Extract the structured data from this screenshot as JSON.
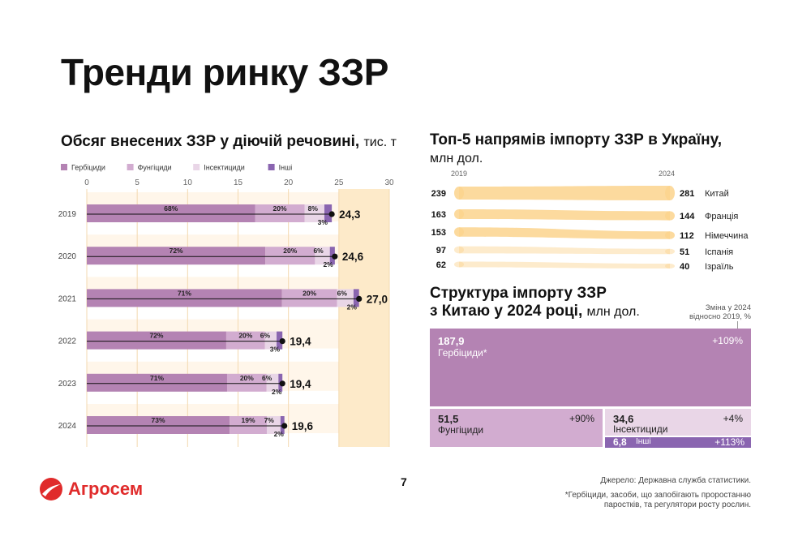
{
  "page": {
    "title": "Тренди ринку ЗЗР",
    "page_number": "7",
    "brand": "Агросем",
    "source": "Джерело: Державна служба статистики.",
    "footnote_line1": "*Гербіциди, засоби, що запобігають проростанню",
    "footnote_line2": "паростків, та регулятори росту рослин."
  },
  "colors": {
    "herbicides": "#b483b3",
    "fungicides": "#d2acd0",
    "insecticides": "#e9d6e7",
    "others": "#8a65b0",
    "band": "#fdeac9",
    "flow": "#fbd38d",
    "brand_red": "#e02b2b"
  },
  "chart_data": [
    {
      "type": "bar",
      "subtype": "stacked-horizontal",
      "title": "Обсяг внесених ЗЗР у діючій речовині,",
      "unit": "тис. т",
      "legend": [
        "Гербіциди",
        "Фунгіциди",
        "Інсектициди",
        "Інші"
      ],
      "xlim": [
        0,
        30
      ],
      "xticks": [
        0,
        5,
        10,
        15,
        20,
        25,
        30
      ],
      "categories": [
        "2019",
        "2020",
        "2021",
        "2022",
        "2023",
        "2024"
      ],
      "totals": [
        24.3,
        24.6,
        27.0,
        19.4,
        19.4,
        19.6
      ],
      "total_labels": [
        "24,3",
        "24,6",
        "27,0",
        "19,4",
        "19,4",
        "19,6"
      ],
      "series": [
        {
          "name": "Гербіциди",
          "shares": [
            68,
            72,
            71,
            72,
            71,
            73
          ],
          "labels": [
            "68%",
            "72%",
            "71%",
            "72%",
            "71%",
            "73%"
          ]
        },
        {
          "name": "Фунгіциди",
          "shares": [
            20,
            20,
            20,
            20,
            20,
            19
          ],
          "labels": [
            "20%",
            "20%",
            "20%",
            "20%",
            "20%",
            "19%"
          ]
        },
        {
          "name": "Інсектициди",
          "shares": [
            8,
            6,
            6,
            6,
            6,
            7
          ],
          "labels": [
            "8%",
            "6%",
            "6%",
            "6%",
            "6%",
            "7%"
          ]
        },
        {
          "name": "Інші",
          "shares": [
            3,
            2,
            2,
            3,
            2,
            2
          ],
          "labels": [
            "3%",
            "2%",
            "2%",
            "3%",
            "2%",
            "2%"
          ]
        }
      ]
    },
    {
      "type": "slope",
      "title": "Топ-5 напрямів імпорту ЗЗР в Україну,",
      "unit": "млн дол.",
      "left_label": "2019",
      "right_label": "2024",
      "countries": [
        "Китай",
        "Франція",
        "Німеччина",
        "Іспанія",
        "Ізраїль"
      ],
      "values_2019": [
        239,
        163,
        153,
        97,
        62
      ],
      "values_2024": [
        281,
        144,
        112,
        51,
        40
      ],
      "left_order": [
        "Китай",
        "Франція",
        "Німеччина",
        "Іспанія",
        "Ізраїль"
      ],
      "right_order": [
        "Китай",
        "Франція",
        "Німеччина",
        "Іспанія",
        "Ізраїль"
      ]
    },
    {
      "type": "treemap",
      "title_line1": "Структура імпорту ЗЗР",
      "title_line2": "з Китаю у 2024 році,",
      "unit": "млн дол.",
      "change_header_line1": "Зміна у 2024",
      "change_header_line2": "відносно 2019, %",
      "items": [
        {
          "name": "Гербіциди*",
          "value": 187.9,
          "value_label": "187,9",
          "change": "+109%"
        },
        {
          "name": "Фунгіциди",
          "value": 51.5,
          "value_label": "51,5",
          "change": "+90%"
        },
        {
          "name": "Інсектициди",
          "value": 34.6,
          "value_label": "34,6",
          "change": "+4%"
        },
        {
          "name": "Інші",
          "value": 6.8,
          "value_label": "6,8",
          "change": "+113%"
        }
      ]
    }
  ]
}
